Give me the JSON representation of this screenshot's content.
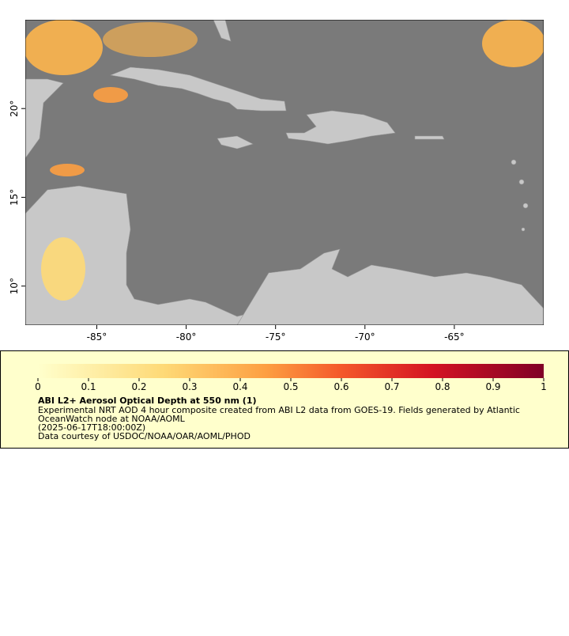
{
  "map": {
    "xlim": [
      -89,
      -60
    ],
    "ylim": [
      7.8,
      25
    ],
    "xticks": [
      {
        "value": -85,
        "label": "-85°"
      },
      {
        "value": -80,
        "label": "-80°"
      },
      {
        "value": -75,
        "label": "-75°"
      },
      {
        "value": -70,
        "label": "-70°"
      },
      {
        "value": -65,
        "label": "-65°"
      }
    ],
    "yticks": [
      {
        "value": 10,
        "label": "10°"
      },
      {
        "value": 15,
        "label": "15°"
      },
      {
        "value": 20,
        "label": "20°"
      }
    ]
  },
  "colorbar": {
    "lim": [
      0,
      1
    ],
    "ticks": [
      0,
      0.1,
      0.2,
      0.3,
      0.4,
      0.5,
      0.6,
      0.7,
      0.8,
      0.9,
      1
    ]
  },
  "caption": {
    "title": "ABI L2+ Aerosol Optical Depth at 550 nm (1)",
    "lines": [
      "Experimental NRT AOD 4 hour composite created from ABI L2 data from GOES-19. Fields generated by Atlantic",
      "OceanWatch node at NOAA/AOML",
      "(2025-06-17T18:00:00Z)",
      "Data courtesy of USDOC/NOAA/OAR/AOML/PHOD"
    ]
  }
}
